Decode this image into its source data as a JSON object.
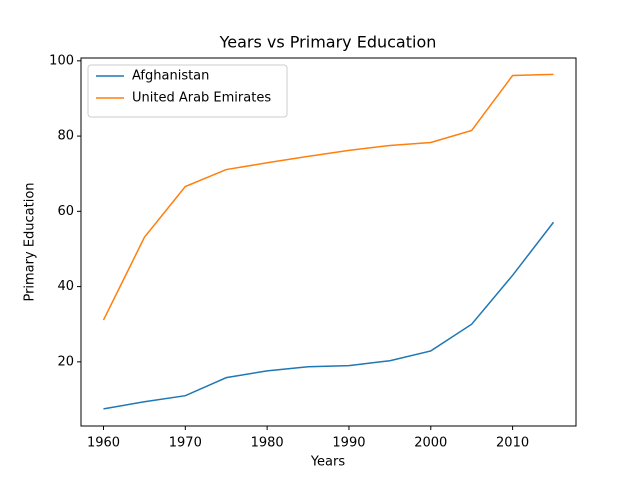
{
  "chart_data": {
    "type": "line",
    "title": "Years vs Primary Education",
    "x_label": "Years",
    "y_label": "Primary Education",
    "x": [
      1960,
      1965,
      1970,
      1975,
      1980,
      1985,
      1990,
      1995,
      2000,
      2005,
      2010,
      2015
    ],
    "series": [
      {
        "name": "Afghanistan",
        "color": "#1f77b4",
        "values": [
          7.5,
          9.4,
          11,
          15.8,
          17.6,
          18.7,
          19.0,
          20.3,
          22.9,
          30,
          43,
          57.1
        ]
      },
      {
        "name": "United Arab Emirates",
        "color": "#ff7f0e",
        "values": [
          31.1,
          53.1,
          66.6,
          71.1,
          72.9,
          74.6,
          76.2,
          77.5,
          78.3,
          81.5,
          96.1,
          96.4
        ]
      }
    ],
    "xlim": [
      1957.25,
      2017.75
    ],
    "xticks": [
      1960,
      1970,
      1980,
      1990,
      2000,
      2010
    ],
    "ylim": [
      2.95,
      100.75
    ],
    "yticks": [
      20,
      40,
      60,
      80,
      100
    ],
    "legend": "upper-left"
  }
}
